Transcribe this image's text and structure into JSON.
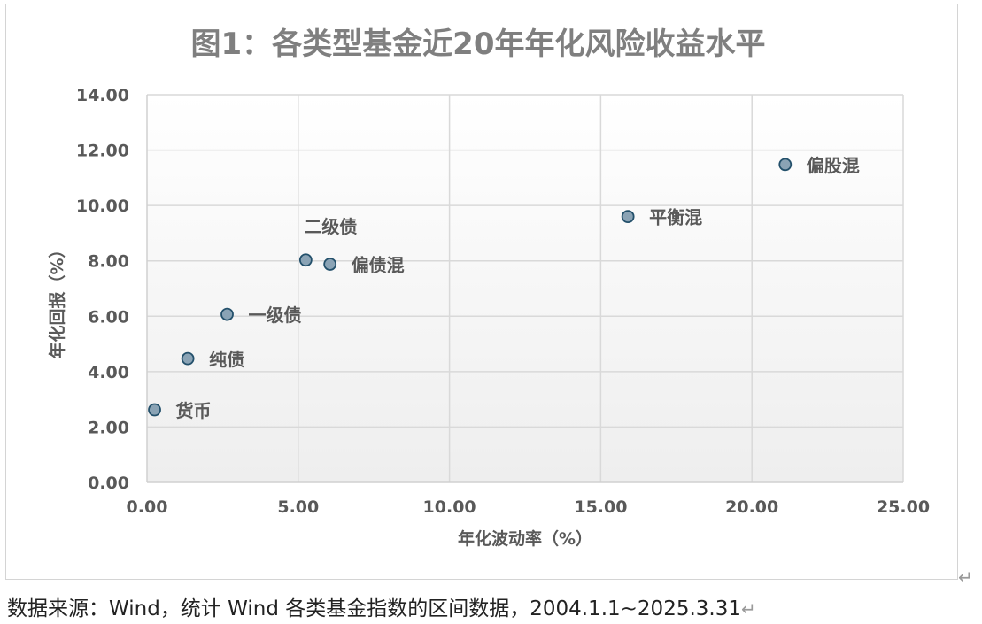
{
  "chart_data": {
    "type": "scatter",
    "title": "图1：各类型基金近20年年化风险收益水平",
    "xlabel": "年化波动率（%）",
    "ylabel": "年化回报（%）",
    "xlim": [
      0,
      25
    ],
    "ylim": [
      0,
      14
    ],
    "x_ticks": [
      "0.00",
      "5.00",
      "10.00",
      "15.00",
      "20.00",
      "25.00"
    ],
    "y_ticks": [
      "0.00",
      "2.00",
      "4.00",
      "6.00",
      "8.00",
      "10.00",
      "12.00",
      "14.00"
    ],
    "grid": true,
    "points": [
      {
        "label": "货币",
        "x": 0.25,
        "y": 2.62
      },
      {
        "label": "纯债",
        "x": 1.35,
        "y": 4.47
      },
      {
        "label": "一级债",
        "x": 2.65,
        "y": 6.07
      },
      {
        "label": "二级债",
        "x": 5.25,
        "y": 8.03
      },
      {
        "label": "偏债混",
        "x": 6.05,
        "y": 7.88
      },
      {
        "label": "平衡混",
        "x": 15.9,
        "y": 9.6
      },
      {
        "label": "偏股混",
        "x": 21.1,
        "y": 11.48
      }
    ],
    "colors": {
      "marker_fill": "#8aa3b5",
      "marker_stroke": "#23506b",
      "title": "#7f7f7f",
      "label": "#595959",
      "grid": "#d9d9d9"
    }
  },
  "source": {
    "text": "数据来源：Wind，统计 Wind 各类基金指数的区间数据，2004.1.1~2025.3.31",
    "return_mark": "↵"
  }
}
